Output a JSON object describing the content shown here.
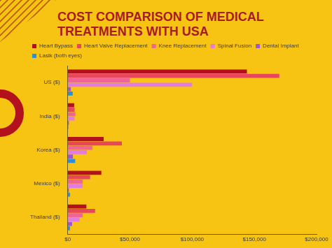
{
  "chart_data": {
    "type": "bar",
    "title": "COST COMPARISON OF MEDICAL TREATMENTS WITH USA",
    "orientation": "horizontal",
    "categories": [
      "US ($)",
      "India ($)",
      "Korea ($)",
      "Mexico ($)",
      "Thailand ($)"
    ],
    "series": [
      {
        "name": "Heart Bypass",
        "color": "#b3121c",
        "values": [
          144000,
          5200,
          28900,
          27000,
          15000
        ]
      },
      {
        "name": "Heart Valve Replacement",
        "color": "#e8465a",
        "values": [
          170000,
          5500,
          43500,
          18000,
          22000
        ]
      },
      {
        "name": "Knee Replacement",
        "color": "#f06595",
        "values": [
          50000,
          6200,
          19800,
          12000,
          12000
        ]
      },
      {
        "name": "Spinal Fusion",
        "color": "#e27ce0",
        "values": [
          100000,
          5500,
          15400,
          12000,
          9500
        ]
      },
      {
        "name": "Dental Implant",
        "color": "#9b59d0",
        "values": [
          2500,
          900,
          4200,
          900,
          3500
        ]
      },
      {
        "name": "Lasik (both eyes)",
        "color": "#2d8fd5",
        "values": [
          4000,
          500,
          6000,
          1900,
          1800
        ]
      }
    ],
    "xlim": [
      0,
      200000
    ],
    "xticks": [
      {
        "value": 0,
        "label": "$0"
      },
      {
        "value": 50000,
        "label": "$50,000"
      },
      {
        "value": 100000,
        "label": "$100,000"
      },
      {
        "value": 150000,
        "label": "$150,000"
      },
      {
        "value": 200000,
        "label": "$200,000"
      }
    ],
    "legend": "top",
    "grid": false
  }
}
